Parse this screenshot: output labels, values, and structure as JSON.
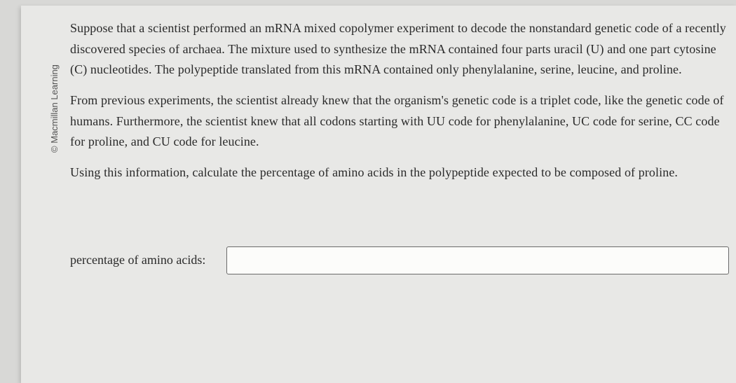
{
  "copyright": "© Macmillan Learning",
  "paragraphs": {
    "p1": "Suppose that a scientist performed an mRNA mixed copolymer experiment to decode the nonstandard genetic code of a recently discovered species of archaea. The mixture used to synthesize the mRNA contained four parts uracil (U) and one part cytosine (C) nucleotides. The polypeptide translated from this mRNA contained only phenylalanine, serine, leucine, and proline.",
    "p2": "From previous experiments, the scientist already knew that the organism's genetic code is a triplet code, like the genetic code of humans. Furthermore, the scientist knew that all codons starting with UU code for phenylalanine, UC code for serine, CC code for proline, and CU code for leucine.",
    "p3": "Using this information, calculate the percentage of amino acids in the polypeptide expected to be composed of proline."
  },
  "answer": {
    "label": "percentage of amino acids:",
    "value": ""
  },
  "style": {
    "background_color": "#d8d8d6",
    "page_color": "#e8e8e6",
    "text_color": "#2a2a2a",
    "input_border": "#6a6a6a",
    "input_bg": "#fcfcfa",
    "body_fontsize": 18,
    "copyright_fontsize": 13
  }
}
